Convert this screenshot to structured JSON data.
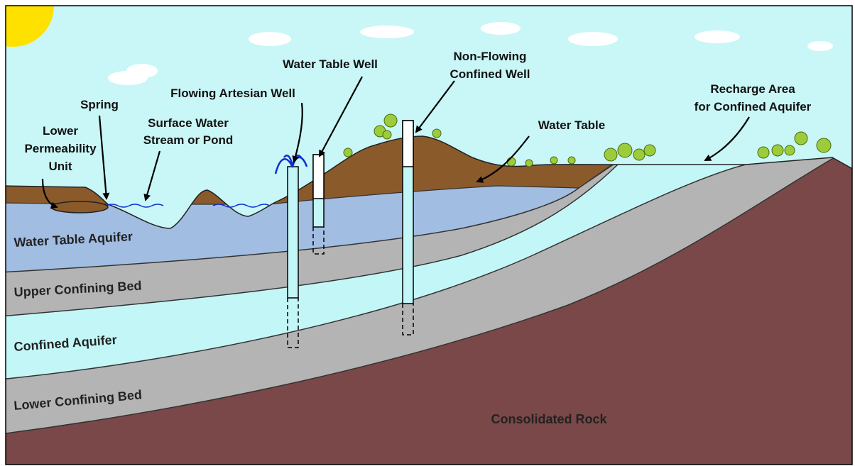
{
  "callouts": [
    {
      "lines": [
        "Lower",
        "Permeability",
        "Unit"
      ]
    },
    {
      "lines": [
        "Spring"
      ]
    },
    {
      "lines": [
        "Surface Water",
        "Stream or Pond"
      ]
    },
    {
      "lines": [
        "Flowing Artesian Well"
      ]
    },
    {
      "lines": [
        "Water Table Well"
      ]
    },
    {
      "lines": [
        "Non-Flowing",
        "Confined Well"
      ]
    },
    {
      "lines": [
        "Water Table"
      ]
    },
    {
      "lines": [
        "Recharge Area",
        "for Confined Aquifer"
      ]
    }
  ],
  "layers": [
    "Water Table Aquifer",
    "Upper Confining Bed",
    "Confined Aquifer",
    "Lower Confining Bed",
    "Consolidated Rock"
  ]
}
